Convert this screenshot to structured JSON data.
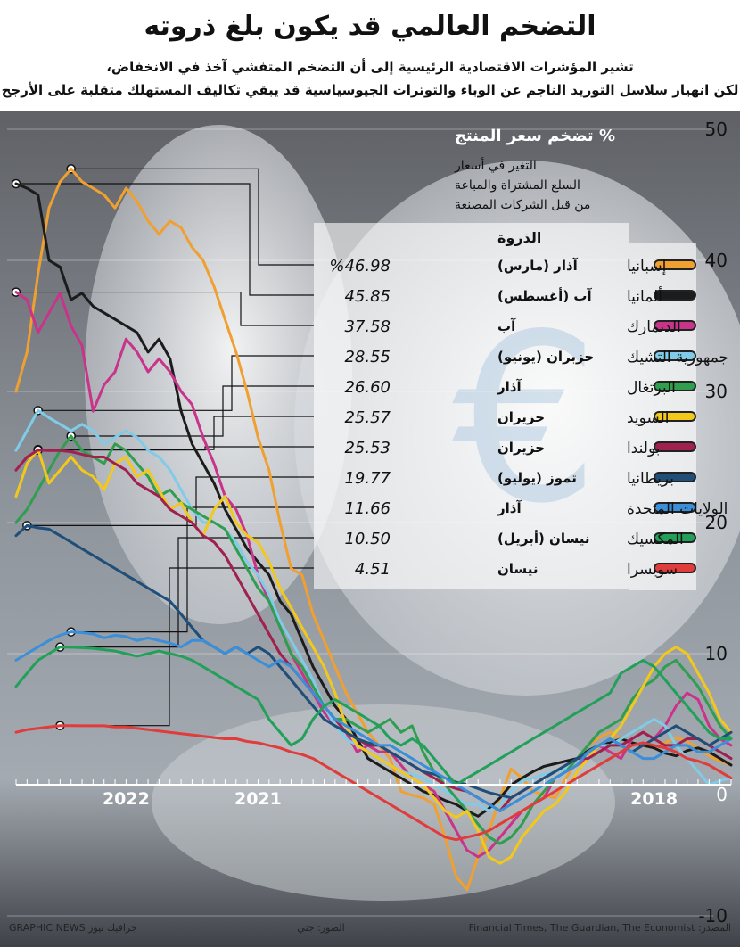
{
  "header": {
    "title": "التضخم العالمي قد يكون بلغ ذروته",
    "subtitle_line1": "تشير المؤشرات الاقتصادية الرئيسية إلى أن التضخم المتفشي آخذ في الانخفاض،",
    "subtitle_line2": "لكن انهيار سلاسل التوريد الناجم عن الوباء والتوترات الجيوسياسية قد يبقي تكاليف المستهلك متقلبة على الأرجح"
  },
  "footer": {
    "source": "المصدر: Financial Times, The Guardian, The Economist",
    "photo": "الصور: جتي",
    "brand": "GRAPHIC NEWS جرافيك نيوز"
  },
  "chart_data": {
    "type": "line",
    "title": "تضخم سعر المنتج %",
    "note": [
      "التغير في أسعار",
      "السلع المشتراة والمباعة",
      "من قبل الشركات المصنعة"
    ],
    "peak_header": "الذروة",
    "x_axis": {
      "direction": "right-to-left",
      "start": "2017-06",
      "end": "2022-08",
      "tick_labels": [
        "2022",
        "2021",
        "2018"
      ]
    },
    "y_axis": {
      "position": "right",
      "range": [
        -10,
        50
      ],
      "ticks": [
        "50",
        "40",
        "30",
        "20",
        "10",
        "0",
        "-10"
      ]
    },
    "legend_placement": "right",
    "series": [
      {
        "name": "إسبانيا",
        "color": "#f0a030",
        "peak_value": "%46.98",
        "peak_month": "آذار (مارس)",
        "peak_index": 60,
        "values": [
          1.5,
          1.8,
          2.2,
          2.8,
          3.3,
          3.6,
          3.2,
          2.8,
          3.0,
          3.2,
          3.5,
          4.0,
          3.6,
          3.0,
          1.8,
          0.5,
          -1.0,
          -0.8,
          -0.5,
          0.5,
          1.2,
          -1.0,
          -3.5,
          -5.5,
          -8.0,
          -7.0,
          -4.0,
          -1.5,
          -1.0,
          -0.8,
          -0.5,
          2.0,
          3.0,
          4.0,
          5.5,
          7.0,
          9.0,
          11.0,
          13.0,
          16.0,
          16.5,
          20.0,
          24.0,
          26.5,
          30.0,
          33.0,
          35.5,
          38.0,
          40.0,
          41.0,
          42.5,
          43.0,
          42.0,
          43.0,
          44.5,
          45.5,
          44.0,
          45.0,
          45.5,
          46.0,
          46.98,
          46.0,
          44.0,
          39.0,
          33.0,
          30.0
        ]
      },
      {
        "name": "ألمانيا",
        "color": "#1c1c1c",
        "peak_value": "45.85",
        "peak_month": "آب (أغسطس)",
        "peak_index": 65,
        "values": [
          1.5,
          2.0,
          2.5,
          2.8,
          2.6,
          2.2,
          2.4,
          2.8,
          3.0,
          3.2,
          3.5,
          3.2,
          3.0,
          2.6,
          2.0,
          1.8,
          1.6,
          1.4,
          1.0,
          0.5,
          0.0,
          -1.0,
          -1.8,
          -2.4,
          -2.0,
          -1.5,
          -1.2,
          -0.8,
          -0.5,
          0.0,
          0.5,
          1.0,
          1.5,
          2.0,
          3.5,
          5.0,
          6.0,
          7.5,
          9.0,
          11.0,
          13.0,
          14.0,
          16.0,
          17.0,
          18.0,
          19.5,
          21.0,
          23.0,
          24.5,
          26.0,
          28.5,
          32.5,
          34.0,
          33.0,
          34.5,
          35.0,
          35.5,
          36.0,
          36.5,
          37.5,
          37.0,
          39.5,
          40.0,
          45.0,
          45.5,
          45.85
        ]
      },
      {
        "name": "الدنمارك",
        "color": "#c8348a",
        "peak_value": "37.58",
        "peak_month": "آب",
        "peak_index": 65,
        "values": [
          3.0,
          3.5,
          4.5,
          6.5,
          7.0,
          6.0,
          4.5,
          3.5,
          4.0,
          3.5,
          2.0,
          2.5,
          3.0,
          2.0,
          1.5,
          1.0,
          0.5,
          -1.0,
          -1.5,
          -2.0,
          -3.0,
          -4.0,
          -5.0,
          -5.5,
          -5.0,
          -3.5,
          -2.0,
          -0.5,
          0.0,
          0.5,
          1.5,
          2.5,
          2.5,
          3.0,
          2.5,
          4.0,
          4.5,
          5.5,
          7.0,
          8.5,
          10.0,
          12.0,
          14.0,
          16.0,
          19.0,
          21.0,
          22.0,
          24.5,
          26.5,
          29.0,
          30.0,
          31.5,
          32.5,
          31.5,
          33.0,
          34.0,
          31.5,
          30.5,
          28.5,
          33.5,
          35.0,
          37.5,
          36.0,
          34.5,
          37.0,
          37.58
        ]
      },
      {
        "name": "جمهورية التشيك",
        "color": "#80cce8",
        "peak_value": "28.55",
        "peak_month": "حزبران (يونيو)",
        "peak_index": 63,
        "values": [
          0.5,
          0.3,
          0.0,
          1.0,
          2.0,
          3.0,
          4.5,
          5.0,
          4.5,
          4.0,
          3.5,
          3.0,
          3.0,
          2.5,
          1.8,
          1.2,
          1.0,
          0.8,
          0.5,
          0.3,
          -0.5,
          -1.5,
          -2.0,
          -1.5,
          -1.5,
          -1.0,
          -0.5,
          0.0,
          0.5,
          0.8,
          1.0,
          1.5,
          2.0,
          2.5,
          3.0,
          3.5,
          4.5,
          6.0,
          8.0,
          9.5,
          11.0,
          12.5,
          14.5,
          16.0,
          17.0,
          18.5,
          19.5,
          20.0,
          20.0,
          21.0,
          22.5,
          24.0,
          25.0,
          25.5,
          26.5,
          27.0,
          26.5,
          26.0,
          27.0,
          27.5,
          27.0,
          27.5,
          28.0,
          28.55,
          27.0,
          25.5
        ]
      },
      {
        "name": "البرتغال",
        "color": "#2f9e4f",
        "peak_value": "26.60",
        "peak_month": "آذار",
        "peak_index": 60,
        "values": [
          3.5,
          4.5,
          6.0,
          7.5,
          8.5,
          9.5,
          9.0,
          8.0,
          7.5,
          6.5,
          5.0,
          4.5,
          4.0,
          3.0,
          2.0,
          1.0,
          0.5,
          -0.5,
          -1.5,
          -3.0,
          -4.0,
          -4.5,
          -4.0,
          -3.0,
          -2.0,
          -1.0,
          0.0,
          1.0,
          2.5,
          4.5,
          4.0,
          5.0,
          4.5,
          4.0,
          4.5,
          5.0,
          5.0,
          6.0,
          7.5,
          9.0,
          10.0,
          12.0,
          14.0,
          15.0,
          16.5,
          18.0,
          19.5,
          20.0,
          20.5,
          21.0,
          21.5,
          22.5,
          22.0,
          23.5,
          24.5,
          25.5,
          26.0,
          24.5,
          25.0,
          25.5,
          26.6,
          25.5,
          24.0,
          22.5,
          21.0,
          20.0
        ]
      },
      {
        "name": "السويد",
        "color": "#f2c81a",
        "peak_value": "25.57",
        "peak_month": "حزيران",
        "peak_index": 63,
        "values": [
          4.0,
          5.0,
          7.0,
          8.5,
          10.0,
          10.5,
          10.0,
          9.0,
          7.5,
          6.0,
          4.5,
          3.5,
          3.0,
          2.0,
          1.0,
          -0.5,
          -1.5,
          -2.0,
          -3.0,
          -4.0,
          -5.5,
          -6.0,
          -5.5,
          -3.5,
          -2.0,
          -2.5,
          -2.0,
          -1.0,
          0.0,
          0.5,
          1.0,
          1.5,
          2.0,
          2.5,
          3.0,
          4.5,
          7.0,
          9.0,
          10.5,
          12.0,
          13.5,
          15.0,
          17.0,
          18.5,
          19.0,
          20.0,
          22.0,
          21.0,
          19.0,
          20.0,
          21.5,
          21.0,
          22.5,
          24.0,
          23.5,
          25.0,
          24.5,
          22.5,
          23.5,
          24.0,
          25.0,
          24.0,
          23.0,
          25.57,
          24.5,
          22.0
        ]
      },
      {
        "name": "بولندا",
        "color": "#a0204e",
        "peak_value": "25.53",
        "peak_month": "حزيران",
        "peak_index": 63,
        "values": [
          2.0,
          2.5,
          3.0,
          3.5,
          3.5,
          3.0,
          3.0,
          3.5,
          4.0,
          3.5,
          3.0,
          3.0,
          2.5,
          2.0,
          2.0,
          1.5,
          1.0,
          0.5,
          0.0,
          -0.5,
          -1.0,
          -2.0,
          -1.5,
          -1.0,
          -0.5,
          -0.3,
          0.0,
          0.5,
          1.0,
          1.5,
          2.0,
          2.5,
          3.0,
          3.0,
          3.5,
          4.0,
          5.0,
          6.0,
          7.0,
          8.0,
          9.0,
          10.0,
          11.5,
          13.0,
          14.5,
          16.0,
          17.5,
          18.5,
          19.0,
          20.0,
          20.5,
          21.0,
          22.0,
          22.5,
          23.0,
          24.0,
          24.5,
          25.0,
          25.0,
          25.2,
          25.4,
          25.5,
          25.5,
          25.53,
          25.0,
          24.0
        ]
      },
      {
        "name": "بريطانيا",
        "color": "#1f4e79",
        "peak_value": "19.77",
        "peak_month": "تموز (يوليو)",
        "peak_index": 64,
        "values": [
          4.0,
          3.5,
          3.0,
          3.5,
          4.0,
          4.5,
          4.0,
          3.5,
          3.0,
          2.5,
          3.0,
          3.5,
          3.0,
          2.5,
          2.0,
          1.5,
          1.0,
          0.5,
          0.0,
          -0.5,
          -1.0,
          -0.8,
          -0.6,
          -0.3,
          0.0,
          0.2,
          0.5,
          0.8,
          1.0,
          1.5,
          2.0,
          2.5,
          3.0,
          3.2,
          3.5,
          4.0,
          4.5,
          5.0,
          6.0,
          7.0,
          8.0,
          9.0,
          10.0,
          10.5,
          10.0,
          10.5,
          10.0,
          10.5,
          11.0,
          12.0,
          13.0,
          14.0,
          14.5,
          15.0,
          15.5,
          16.0,
          16.5,
          17.0,
          17.5,
          18.0,
          18.5,
          19.0,
          19.5,
          19.6,
          19.77,
          19.0
        ]
      },
      {
        "name": "الولايات المتحدة",
        "color": "#3a8fd8",
        "peak_value": "11.66",
        "peak_month": "آذار",
        "peak_index": 60,
        "values": [
          3.5,
          3.0,
          2.5,
          2.5,
          3.0,
          3.0,
          2.5,
          2.0,
          2.0,
          2.5,
          3.0,
          3.5,
          3.0,
          2.5,
          1.5,
          1.0,
          0.5,
          0.0,
          -0.5,
          -1.0,
          -1.5,
          -2.0,
          -1.5,
          -1.0,
          -0.5,
          0.0,
          0.5,
          1.0,
          1.5,
          2.0,
          2.5,
          3.0,
          3.0,
          3.5,
          4.0,
          4.5,
          5.0,
          6.0,
          7.0,
          8.0,
          9.0,
          9.5,
          9.0,
          9.5,
          10.0,
          10.5,
          10.0,
          10.5,
          11.0,
          11.0,
          10.5,
          10.8,
          11.0,
          11.2,
          11.0,
          11.3,
          11.4,
          11.2,
          11.5,
          11.6,
          11.66,
          11.4,
          11.0,
          10.5,
          10.0,
          9.5
        ]
      },
      {
        "name": "المكسيك",
        "color": "#22a05a",
        "peak_value": "10.50",
        "peak_month": "نيسان (أبريل)",
        "peak_index": 61,
        "values": [
          3.5,
          3.5,
          4.0,
          5.0,
          6.0,
          7.0,
          8.0,
          9.0,
          9.5,
          9.0,
          8.5,
          7.0,
          6.5,
          6.0,
          5.5,
          5.0,
          4.5,
          4.0,
          3.5,
          3.0,
          2.5,
          2.0,
          1.5,
          1.0,
          0.5,
          0.0,
          1.0,
          2.0,
          3.0,
          3.5,
          3.0,
          3.5,
          4.5,
          5.0,
          5.5,
          6.0,
          6.5,
          6.0,
          5.0,
          3.5,
          3.0,
          4.0,
          5.0,
          6.5,
          7.0,
          7.5,
          8.0,
          8.5,
          9.0,
          9.5,
          9.8,
          10.0,
          10.2,
          10.0,
          9.8,
          10.0,
          10.2,
          10.3,
          10.4,
          10.45,
          10.48,
          10.5,
          10.0,
          9.5,
          8.5,
          7.5
        ]
      },
      {
        "name": "سويسرا",
        "color": "#e03c3c",
        "peak_value": "4.51",
        "peak_month": "نيسان",
        "peak_index": 61,
        "values": [
          0.5,
          1.0,
          1.5,
          1.8,
          2.0,
          2.5,
          2.8,
          3.0,
          3.2,
          3.0,
          2.5,
          2.0,
          1.5,
          1.0,
          0.5,
          0.0,
          -0.5,
          -1.0,
          -1.5,
          -2.0,
          -2.5,
          -3.0,
          -3.5,
          -3.8,
          -4.0,
          -4.2,
          -4.0,
          -3.5,
          -3.0,
          -2.5,
          -2.0,
          -1.5,
          -1.0,
          -0.5,
          0.0,
          0.5,
          1.0,
          1.5,
          2.0,
          2.3,
          2.5,
          2.8,
          3.0,
          3.2,
          3.3,
          3.5,
          3.5,
          3.6,
          3.7,
          3.8,
          3.9,
          4.0,
          4.1,
          4.2,
          4.3,
          4.4,
          4.4,
          4.5,
          4.5,
          4.5,
          4.51,
          4.51,
          4.4,
          4.3,
          4.2,
          4.0
        ]
      }
    ]
  }
}
